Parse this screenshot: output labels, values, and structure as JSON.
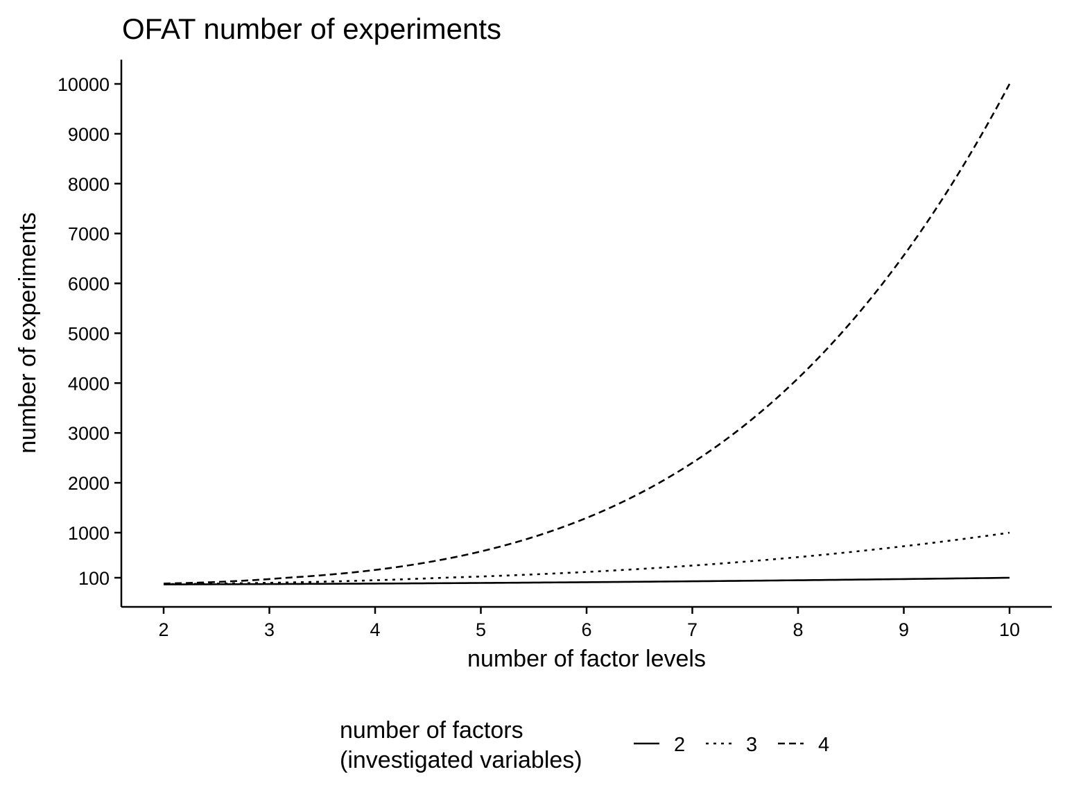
{
  "chart_data": {
    "type": "line",
    "title": "OFAT number of experiments",
    "xlabel": "number of factor levels",
    "ylabel": "number of experiments",
    "x": [
      2,
      3,
      4,
      5,
      6,
      7,
      8,
      9,
      10
    ],
    "xlim": [
      1.6,
      10.4
    ],
    "ylim_display": [
      -250,
      10500
    ],
    "y_ticks": [
      100,
      1000,
      2000,
      3000,
      4000,
      5000,
      6000,
      7000,
      8000,
      9000,
      10000
    ],
    "x_ticks": [
      2,
      3,
      4,
      5,
      6,
      7,
      8,
      9,
      10
    ],
    "scale_note": "y axis is linear from 1000 to 10000; the segment between 100 and 1000 is compressed",
    "grid": false,
    "legend": {
      "title_line1": "number of factors",
      "title_line2": "(investigated variables)",
      "placement": "bottom"
    },
    "series": [
      {
        "name": "2",
        "linetype": "solid",
        "values": [
          4,
          9,
          16,
          25,
          36,
          49,
          64,
          81,
          100
        ]
      },
      {
        "name": "3",
        "linetype": "dotted",
        "values": [
          8,
          27,
          64,
          125,
          216,
          343,
          512,
          729,
          1000
        ]
      },
      {
        "name": "4",
        "linetype": "dashed",
        "values": [
          16,
          81,
          256,
          625,
          1296,
          2401,
          4096,
          6561,
          10000
        ]
      }
    ]
  }
}
